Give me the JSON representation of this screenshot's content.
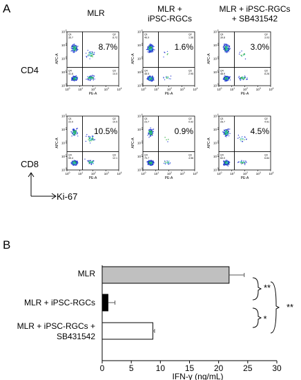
{
  "panel_a": {
    "letter": "A",
    "columns": [
      "MLR",
      "MLR +\niPSC-RGCs",
      "MLR + iPSC-RGCs\n+ SB431542"
    ],
    "rows": [
      {
        "label": "CD4",
        "plots": [
          {
            "q1": "35.7",
            "q2": "8.72",
            "q3": "14.0",
            "q4": "41.6",
            "pct": "8.7%"
          },
          {
            "q1": "46.9",
            "q2": "1.56",
            "q3": "2.95",
            "q4": "48.5",
            "pct": "1.6%"
          },
          {
            "q1": "39.8",
            "q2": "3.03",
            "q3": "8.26",
            "q4": "48.9",
            "pct": "3.0%"
          }
        ]
      },
      {
        "label": "CD8",
        "plots": [
          {
            "q1": "22.0",
            "q2": "10.5",
            "q3": "12.1",
            "q4": "55.4",
            "pct": "10.5%"
          },
          {
            "q1": "23.7",
            "q2": "0.92",
            "q3": "4.56",
            "q4": "70.7",
            "pct": "0.9%"
          },
          {
            "q1": "28.7",
            "q2": "4.51",
            "q3": "6.84",
            "q4": "60.0",
            "pct": "4.5%"
          }
        ]
      }
    ],
    "y_axis_name": "APC-A",
    "x_axis_name": "PE-A",
    "tick_labels": [
      "0",
      "1",
      "2",
      "3",
      "4"
    ],
    "arrow_x_label": "Ki-67",
    "arrow_y_label": "CD8"
  },
  "panel_b": {
    "letter": "B",
    "sig_labels": [
      "**",
      "*",
      "**"
    ]
  },
  "chart_data": {
    "type": "bar",
    "orientation": "horizontal",
    "categories": [
      "MLR",
      "MLR + iPSC-RGCs",
      "MLR + iPSC-RGCs + SB431542"
    ],
    "category_lines": [
      [
        "MLR"
      ],
      [
        "MLR + iPSC-RGCs"
      ],
      [
        "MLR + iPSC-RGCs +",
        "SB431542"
      ]
    ],
    "values": [
      21.8,
      1.0,
      8.7
    ],
    "errors": [
      2.6,
      1.2,
      0.3
    ],
    "bar_colors": [
      "#c0c0c0",
      "#000000",
      "#ffffff"
    ],
    "xlabel": "IFN-γ (ng/mL)",
    "xlim": [
      0,
      30
    ],
    "xticks": [
      0,
      5,
      10,
      15,
      20,
      25,
      30
    ],
    "significance": [
      {
        "between": [
          0,
          1
        ],
        "label": "**"
      },
      {
        "between": [
          1,
          2
        ],
        "label": "*"
      },
      {
        "between": [
          0,
          2
        ],
        "label": "**"
      }
    ]
  }
}
